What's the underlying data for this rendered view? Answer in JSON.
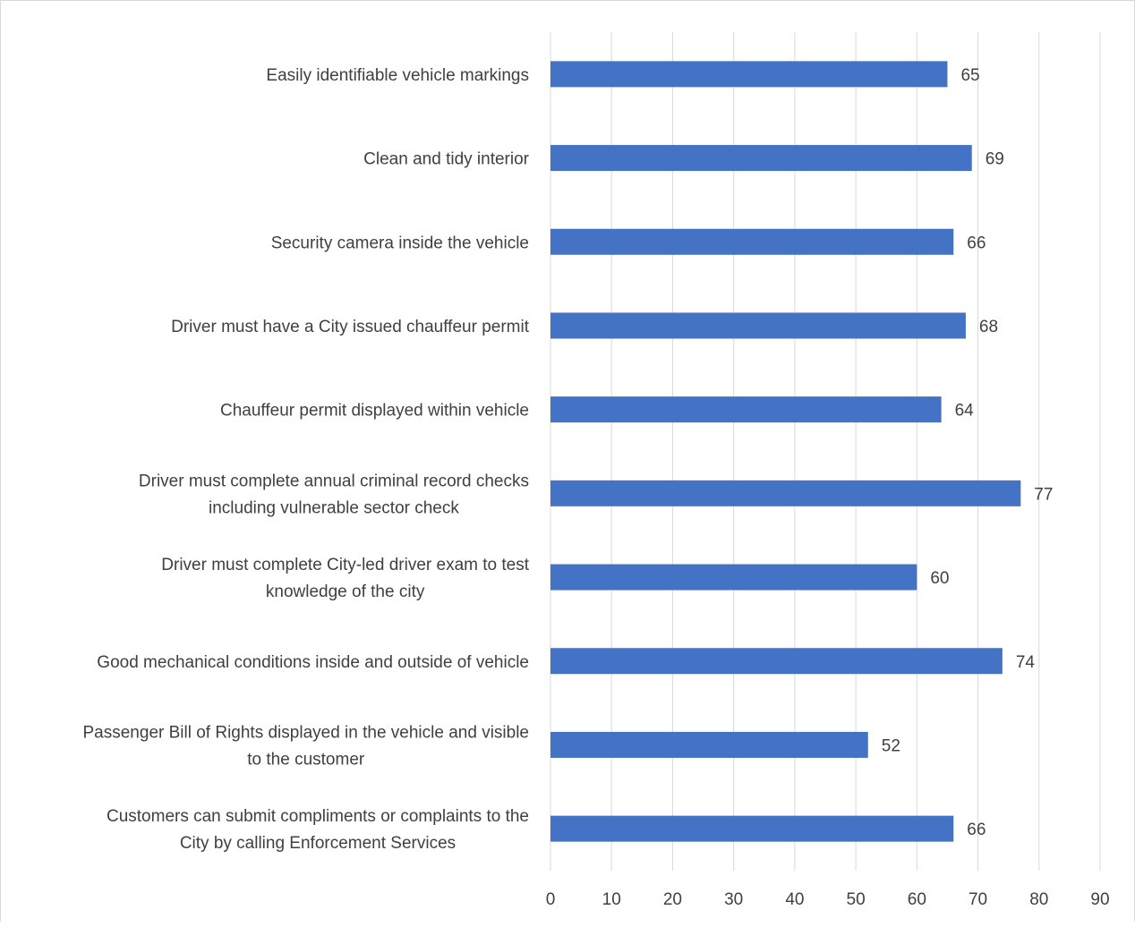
{
  "chart_data": {
    "type": "bar",
    "orientation": "horizontal",
    "categories": [
      [
        "Easily identifiable vehicle markings"
      ],
      [
        "Clean and tidy interior"
      ],
      [
        "Security camera inside the vehicle"
      ],
      [
        "Driver must have a City issued chauffeur permit"
      ],
      [
        "Chauffeur permit displayed within vehicle"
      ],
      [
        "Driver must complete annual criminal record checks",
        "including vulnerable sector check"
      ],
      [
        "Driver must complete City-led driver exam to test",
        "knowledge of the city"
      ],
      [
        "Good mechanical conditions inside and outside of vehicle"
      ],
      [
        "Passenger Bill of Rights displayed in the vehicle and visible",
        "to the customer"
      ],
      [
        "Customers can submit compliments or complaints to the",
        "City by calling Enforcement Services"
      ]
    ],
    "values": [
      65,
      69,
      66,
      68,
      64,
      77,
      60,
      74,
      52,
      66
    ],
    "xlim": [
      0,
      90
    ],
    "xticks": [
      0,
      10,
      20,
      30,
      40,
      50,
      60,
      70,
      80,
      90
    ],
    "grid": "vertical",
    "data_labels": true,
    "bar_color": "#4472c4",
    "grid_color": "#d9d9d9"
  }
}
